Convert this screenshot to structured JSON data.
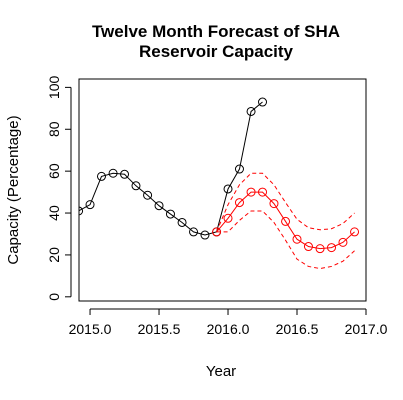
{
  "chart_data": {
    "type": "line",
    "title_line1": "Twelve Month Forecast of SHA",
    "title_line2": "Reservoir Capacity",
    "xlabel": "Year",
    "ylabel": "Capacity (Percentage)",
    "xlim": [
      2014.92,
      2017.0
    ],
    "ylim": [
      -2,
      104
    ],
    "x_ticks": [
      2015.0,
      2015.5,
      2016.0,
      2016.5,
      2017.0
    ],
    "x_tick_labels": [
      "2015.0",
      "2015.5",
      "2016.0",
      "2016.5",
      "2017.0"
    ],
    "y_ticks": [
      0,
      20,
      40,
      60,
      80,
      100
    ],
    "y_tick_labels": [
      "0",
      "20",
      "40",
      "60",
      "80",
      "100"
    ],
    "series": [
      {
        "role": "observed",
        "color": "#000000",
        "x": [
          2014.917,
          2015.0,
          2015.083,
          2015.167,
          2015.25,
          2015.333,
          2015.417,
          2015.5,
          2015.583,
          2015.667,
          2015.75,
          2015.833,
          2015.917,
          2016.0,
          2016.083,
          2016.167,
          2016.25
        ],
        "y": [
          41,
          44,
          57.5,
          59,
          58.5,
          53,
          48.5,
          43.5,
          39.5,
          35.5,
          31,
          29.5,
          31,
          51.5,
          61,
          88.5,
          93
        ]
      },
      {
        "role": "forecast",
        "color": "#ff0000",
        "x": [
          2015.917,
          2016.0,
          2016.083,
          2016.167,
          2016.25,
          2016.333,
          2016.417,
          2016.5,
          2016.583,
          2016.667,
          2016.75,
          2016.833,
          2016.917
        ],
        "y": [
          31,
          37.5,
          45,
          50,
          50,
          44.5,
          36,
          27.5,
          24,
          23,
          23.5,
          26,
          31
        ]
      },
      {
        "role": "upper-bound",
        "color": "#ff0000",
        "style": "dashed",
        "x": [
          2015.917,
          2016.0,
          2016.083,
          2016.167,
          2016.25,
          2016.333,
          2016.417,
          2016.5,
          2016.583,
          2016.667,
          2016.75,
          2016.833,
          2016.917
        ],
        "y": [
          31,
          44,
          53.5,
          59,
          59,
          53.5,
          45,
          37,
          33,
          32,
          32.5,
          35,
          40
        ]
      },
      {
        "role": "lower-bound",
        "color": "#ff0000",
        "style": "dashed",
        "x": [
          2015.917,
          2016.0,
          2016.083,
          2016.167,
          2016.25,
          2016.333,
          2016.417,
          2016.5,
          2016.583,
          2016.667,
          2016.75,
          2016.833,
          2016.917
        ],
        "y": [
          31,
          31,
          36.5,
          41,
          41,
          35.5,
          27,
          18,
          14.5,
          13.5,
          14.5,
          17,
          22
        ]
      }
    ],
    "grid": false,
    "legend": "none"
  }
}
